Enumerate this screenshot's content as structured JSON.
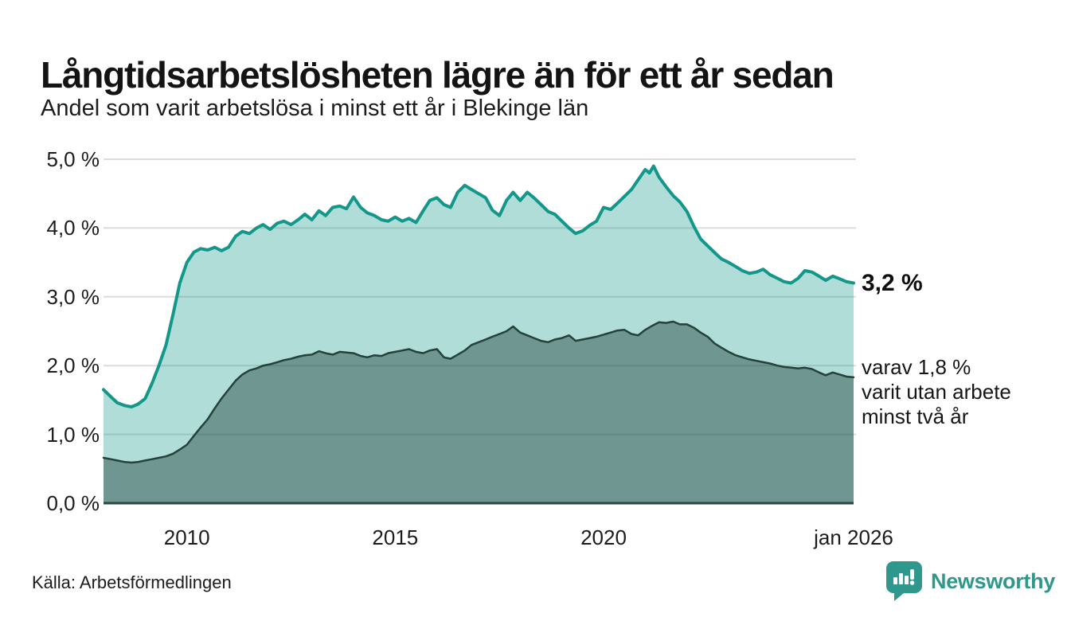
{
  "header": {
    "title": "Långtidsarbetslösheten lägre än för ett år sedan",
    "subtitle": "Andel som varit arbetslösa i minst ett år i Blekinge län"
  },
  "footer": {
    "source": "Källa: Arbetsförmedlingen",
    "brand": "Newsworthy"
  },
  "colors": {
    "total_line": "#12978a",
    "total_fill": "rgba(18,151,138,0.33)",
    "subset_line": "#24423c",
    "subset_fill": "rgba(32,64,57,0.45)",
    "gridline": "#dcdcdc",
    "baseline": "#2a463f",
    "brand_teal": "#2f978b",
    "text": "#161616"
  },
  "chart_data": {
    "type": "area",
    "title": "Långtidsarbetslösheten lägre än för ett år sedan",
    "subtitle": "Andel som varit arbetslösa i minst ett år i Blekinge län",
    "unit": "%",
    "grid": true,
    "legend": "none",
    "x_axis": {
      "range": [
        2008,
        2026
      ],
      "ticks": [
        {
          "label": "2010",
          "year": 2010
        },
        {
          "label": "2015",
          "year": 2015
        },
        {
          "label": "2020",
          "year": 2020
        },
        {
          "label": "jan 2026",
          "year": 2026
        }
      ]
    },
    "y_axis": {
      "range": [
        0,
        5
      ],
      "ticks": [
        {
          "label": "5,0 %",
          "value": 5
        },
        {
          "label": "4,0 %",
          "value": 4
        },
        {
          "label": "3,0 %",
          "value": 3
        },
        {
          "label": "2,0 %",
          "value": 2
        },
        {
          "label": "1,0 %",
          "value": 1
        },
        {
          "label": "0,0 %",
          "value": 0
        }
      ]
    },
    "annotations": {
      "total_label": "3,2 %",
      "subset_lines": [
        "varav 1,8 %",
        "varit utan arbete",
        "minst två år"
      ]
    },
    "series": [
      {
        "name": "arbetslosa-minst-ett-ar",
        "latest_value": 3.2,
        "points": [
          [
            2008.0,
            1.65
          ],
          [
            2008.17,
            1.55
          ],
          [
            2008.33,
            1.46
          ],
          [
            2008.5,
            1.42
          ],
          [
            2008.67,
            1.4
          ],
          [
            2008.83,
            1.44
          ],
          [
            2009.0,
            1.52
          ],
          [
            2009.17,
            1.75
          ],
          [
            2009.33,
            2.0
          ],
          [
            2009.5,
            2.3
          ],
          [
            2009.67,
            2.75
          ],
          [
            2009.83,
            3.2
          ],
          [
            2010.0,
            3.5
          ],
          [
            2010.17,
            3.65
          ],
          [
            2010.33,
            3.7
          ],
          [
            2010.5,
            3.68
          ],
          [
            2010.67,
            3.72
          ],
          [
            2010.83,
            3.67
          ],
          [
            2011.0,
            3.72
          ],
          [
            2011.17,
            3.88
          ],
          [
            2011.33,
            3.95
          ],
          [
            2011.5,
            3.92
          ],
          [
            2011.67,
            4.0
          ],
          [
            2011.83,
            4.05
          ],
          [
            2012.0,
            3.98
          ],
          [
            2012.17,
            4.07
          ],
          [
            2012.33,
            4.1
          ],
          [
            2012.5,
            4.05
          ],
          [
            2012.67,
            4.12
          ],
          [
            2012.83,
            4.2
          ],
          [
            2013.0,
            4.12
          ],
          [
            2013.17,
            4.25
          ],
          [
            2013.33,
            4.18
          ],
          [
            2013.5,
            4.3
          ],
          [
            2013.67,
            4.32
          ],
          [
            2013.83,
            4.28
          ],
          [
            2014.0,
            4.45
          ],
          [
            2014.17,
            4.3
          ],
          [
            2014.33,
            4.22
          ],
          [
            2014.5,
            4.18
          ],
          [
            2014.67,
            4.12
          ],
          [
            2014.83,
            4.1
          ],
          [
            2015.0,
            4.16
          ],
          [
            2015.17,
            4.1
          ],
          [
            2015.33,
            4.14
          ],
          [
            2015.5,
            4.08
          ],
          [
            2015.67,
            4.25
          ],
          [
            2015.83,
            4.4
          ],
          [
            2016.0,
            4.44
          ],
          [
            2016.17,
            4.34
          ],
          [
            2016.33,
            4.3
          ],
          [
            2016.5,
            4.52
          ],
          [
            2016.67,
            4.62
          ],
          [
            2016.83,
            4.56
          ],
          [
            2017.0,
            4.5
          ],
          [
            2017.17,
            4.44
          ],
          [
            2017.33,
            4.26
          ],
          [
            2017.5,
            4.18
          ],
          [
            2017.67,
            4.4
          ],
          [
            2017.83,
            4.52
          ],
          [
            2018.0,
            4.4
          ],
          [
            2018.17,
            4.52
          ],
          [
            2018.33,
            4.44
          ],
          [
            2018.5,
            4.34
          ],
          [
            2018.67,
            4.24
          ],
          [
            2018.83,
            4.2
          ],
          [
            2019.0,
            4.1
          ],
          [
            2019.17,
            4.0
          ],
          [
            2019.33,
            3.92
          ],
          [
            2019.5,
            3.96
          ],
          [
            2019.67,
            4.04
          ],
          [
            2019.83,
            4.1
          ],
          [
            2020.0,
            4.3
          ],
          [
            2020.17,
            4.27
          ],
          [
            2020.33,
            4.36
          ],
          [
            2020.5,
            4.46
          ],
          [
            2020.67,
            4.56
          ],
          [
            2020.83,
            4.7
          ],
          [
            2021.0,
            4.85
          ],
          [
            2021.1,
            4.8
          ],
          [
            2021.2,
            4.9
          ],
          [
            2021.33,
            4.74
          ],
          [
            2021.5,
            4.6
          ],
          [
            2021.67,
            4.47
          ],
          [
            2021.83,
            4.38
          ],
          [
            2022.0,
            4.24
          ],
          [
            2022.17,
            4.02
          ],
          [
            2022.33,
            3.84
          ],
          [
            2022.5,
            3.74
          ],
          [
            2022.67,
            3.64
          ],
          [
            2022.83,
            3.55
          ],
          [
            2023.0,
            3.5
          ],
          [
            2023.17,
            3.44
          ],
          [
            2023.33,
            3.38
          ],
          [
            2023.5,
            3.34
          ],
          [
            2023.67,
            3.36
          ],
          [
            2023.83,
            3.4
          ],
          [
            2024.0,
            3.32
          ],
          [
            2024.17,
            3.27
          ],
          [
            2024.33,
            3.22
          ],
          [
            2024.5,
            3.2
          ],
          [
            2024.67,
            3.27
          ],
          [
            2024.83,
            3.38
          ],
          [
            2025.0,
            3.36
          ],
          [
            2025.17,
            3.3
          ],
          [
            2025.33,
            3.24
          ],
          [
            2025.5,
            3.3
          ],
          [
            2025.67,
            3.26
          ],
          [
            2025.83,
            3.22
          ],
          [
            2026.0,
            3.2
          ]
        ]
      },
      {
        "name": "varav-utan-arbete-minst-tva-ar",
        "latest_value": 1.8,
        "points": [
          [
            2008.0,
            0.66
          ],
          [
            2008.17,
            0.64
          ],
          [
            2008.33,
            0.62
          ],
          [
            2008.5,
            0.6
          ],
          [
            2008.67,
            0.59
          ],
          [
            2008.83,
            0.6
          ],
          [
            2009.0,
            0.62
          ],
          [
            2009.17,
            0.64
          ],
          [
            2009.33,
            0.66
          ],
          [
            2009.5,
            0.68
          ],
          [
            2009.67,
            0.72
          ],
          [
            2009.83,
            0.78
          ],
          [
            2010.0,
            0.85
          ],
          [
            2010.17,
            0.98
          ],
          [
            2010.33,
            1.1
          ],
          [
            2010.5,
            1.22
          ],
          [
            2010.67,
            1.38
          ],
          [
            2010.83,
            1.52
          ],
          [
            2011.0,
            1.65
          ],
          [
            2011.17,
            1.78
          ],
          [
            2011.33,
            1.87
          ],
          [
            2011.5,
            1.93
          ],
          [
            2011.67,
            1.96
          ],
          [
            2011.83,
            2.0
          ],
          [
            2012.0,
            2.02
          ],
          [
            2012.17,
            2.05
          ],
          [
            2012.33,
            2.08
          ],
          [
            2012.5,
            2.1
          ],
          [
            2012.67,
            2.13
          ],
          [
            2012.83,
            2.15
          ],
          [
            2013.0,
            2.16
          ],
          [
            2013.17,
            2.21
          ],
          [
            2013.33,
            2.18
          ],
          [
            2013.5,
            2.16
          ],
          [
            2013.67,
            2.2
          ],
          [
            2013.83,
            2.19
          ],
          [
            2014.0,
            2.18
          ],
          [
            2014.17,
            2.14
          ],
          [
            2014.33,
            2.12
          ],
          [
            2014.5,
            2.15
          ],
          [
            2014.67,
            2.14
          ],
          [
            2014.83,
            2.18
          ],
          [
            2015.0,
            2.2
          ],
          [
            2015.17,
            2.22
          ],
          [
            2015.33,
            2.24
          ],
          [
            2015.5,
            2.2
          ],
          [
            2015.67,
            2.18
          ],
          [
            2015.83,
            2.22
          ],
          [
            2016.0,
            2.24
          ],
          [
            2016.17,
            2.12
          ],
          [
            2016.33,
            2.1
          ],
          [
            2016.5,
            2.16
          ],
          [
            2016.67,
            2.22
          ],
          [
            2016.83,
            2.3
          ],
          [
            2017.0,
            2.34
          ],
          [
            2017.17,
            2.38
          ],
          [
            2017.33,
            2.42
          ],
          [
            2017.5,
            2.46
          ],
          [
            2017.67,
            2.5
          ],
          [
            2017.83,
            2.57
          ],
          [
            2018.0,
            2.48
          ],
          [
            2018.17,
            2.44
          ],
          [
            2018.33,
            2.4
          ],
          [
            2018.5,
            2.36
          ],
          [
            2018.67,
            2.34
          ],
          [
            2018.83,
            2.38
          ],
          [
            2019.0,
            2.4
          ],
          [
            2019.17,
            2.44
          ],
          [
            2019.33,
            2.36
          ],
          [
            2019.5,
            2.38
          ],
          [
            2019.67,
            2.4
          ],
          [
            2019.83,
            2.42
          ],
          [
            2020.0,
            2.45
          ],
          [
            2020.17,
            2.48
          ],
          [
            2020.33,
            2.51
          ],
          [
            2020.5,
            2.52
          ],
          [
            2020.67,
            2.46
          ],
          [
            2020.83,
            2.44
          ],
          [
            2021.0,
            2.52
          ],
          [
            2021.17,
            2.58
          ],
          [
            2021.33,
            2.63
          ],
          [
            2021.5,
            2.62
          ],
          [
            2021.67,
            2.64
          ],
          [
            2021.83,
            2.6
          ],
          [
            2022.0,
            2.6
          ],
          [
            2022.17,
            2.55
          ],
          [
            2022.33,
            2.48
          ],
          [
            2022.5,
            2.42
          ],
          [
            2022.67,
            2.32
          ],
          [
            2022.83,
            2.26
          ],
          [
            2023.0,
            2.2
          ],
          [
            2023.17,
            2.15
          ],
          [
            2023.33,
            2.12
          ],
          [
            2023.5,
            2.09
          ],
          [
            2023.67,
            2.07
          ],
          [
            2023.83,
            2.05
          ],
          [
            2024.0,
            2.03
          ],
          [
            2024.17,
            2.0
          ],
          [
            2024.33,
            1.98
          ],
          [
            2024.5,
            1.97
          ],
          [
            2024.67,
            1.96
          ],
          [
            2024.83,
            1.97
          ],
          [
            2025.0,
            1.95
          ],
          [
            2025.17,
            1.9
          ],
          [
            2025.33,
            1.86
          ],
          [
            2025.5,
            1.9
          ],
          [
            2025.67,
            1.87
          ],
          [
            2025.83,
            1.84
          ],
          [
            2026.0,
            1.83
          ]
        ]
      }
    ]
  }
}
